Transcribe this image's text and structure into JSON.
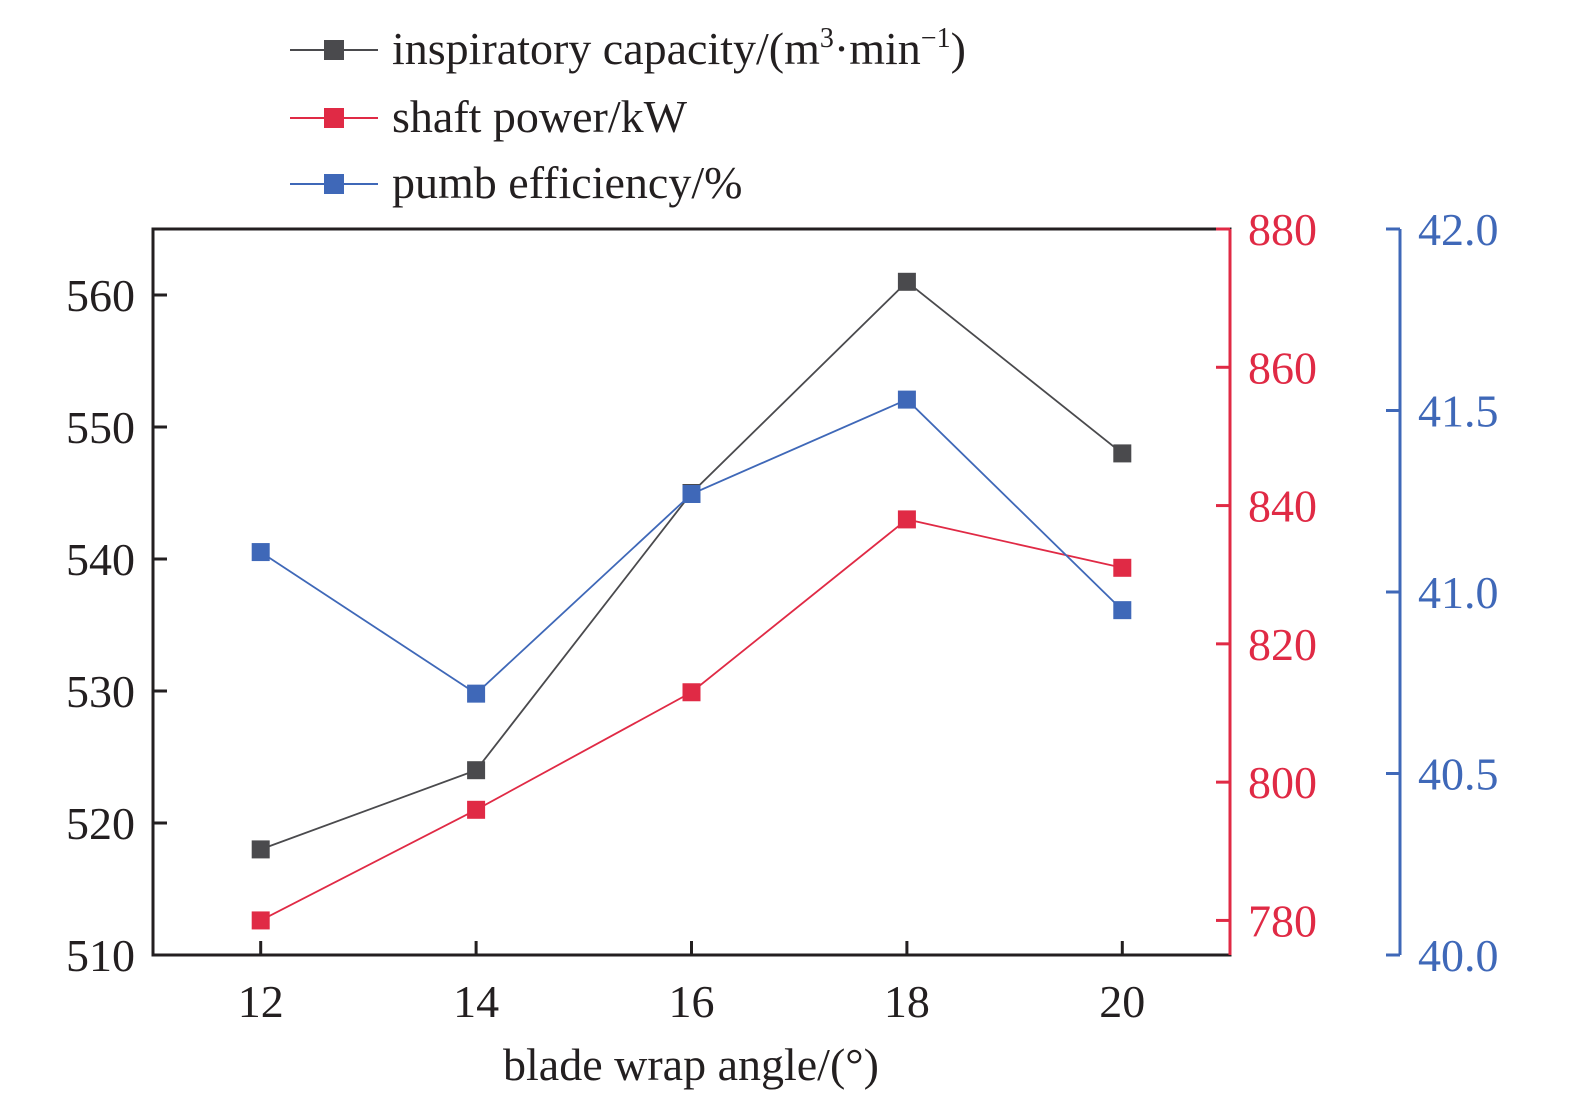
{
  "chart_data": {
    "type": "line",
    "x": [
      12,
      14,
      16,
      18,
      20
    ],
    "xlabel": "blade wrap angle/(°)",
    "x_ticks": [
      "12",
      "14",
      "16",
      "18",
      "20"
    ],
    "xlim": [
      11,
      21
    ],
    "grid": false,
    "legend_position": "top-center",
    "legend": {
      "inspiratory": {
        "prefix": "inspiratory capacity/(m",
        "sup1": "3",
        "mid": "·min",
        "sup2": "−1",
        "suffix": ")"
      },
      "shaft": "shaft power/kW",
      "pump": "pumb efficiency/%"
    },
    "series": [
      {
        "id": "inspiratory",
        "name": "inspiratory capacity/(m³·min⁻¹)",
        "axis": "left",
        "color": "#4a4a4d",
        "values": [
          518,
          524,
          545,
          561,
          548
        ]
      },
      {
        "id": "shaft",
        "name": "shaft power/kW",
        "axis": "right1",
        "color": "#e02a45",
        "values": [
          780,
          796,
          813,
          838,
          831
        ]
      },
      {
        "id": "pump",
        "name": "pumb efficiency/%",
        "axis": "right2",
        "color": "#3f68b8",
        "values": [
          41.11,
          40.72,
          41.27,
          41.53,
          40.95
        ]
      }
    ],
    "axes": {
      "left": {
        "ylim": [
          510,
          565
        ],
        "ticks": [
          510,
          520,
          530,
          540,
          550,
          560
        ],
        "tick_labels": [
          "510",
          "520",
          "530",
          "540",
          "550",
          "560"
        ],
        "color": "#231f20"
      },
      "right1": {
        "ylim": [
          775,
          880
        ],
        "ticks": [
          780,
          800,
          820,
          840,
          860,
          880
        ],
        "tick_labels": [
          "780",
          "800",
          "820",
          "840",
          "860",
          "880"
        ],
        "color": "#e02a45"
      },
      "right2": {
        "ylim": [
          40.0,
          42.0
        ],
        "ticks": [
          40.0,
          40.5,
          41.0,
          41.5,
          42.0
        ],
        "tick_labels": [
          "40.0",
          "40.5",
          "41.0",
          "41.5",
          "42.0"
        ],
        "color": "#3f68b8"
      }
    }
  }
}
